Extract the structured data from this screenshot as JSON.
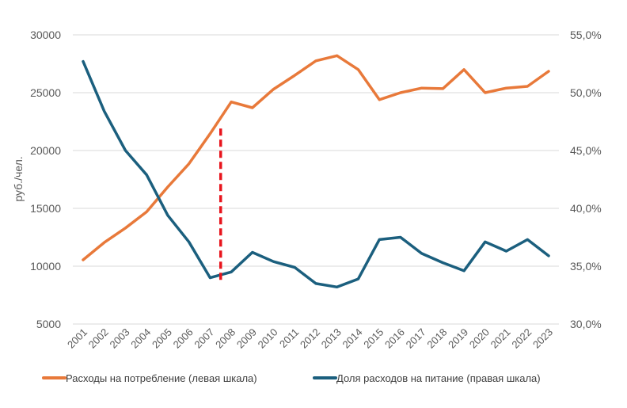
{
  "chart_data": {
    "type": "line",
    "title": "",
    "xlabel": "",
    "ylabel": "руб./чел.",
    "y2label": "",
    "categories": [
      "2001",
      "2002",
      "2003",
      "2004",
      "2005",
      "2006",
      "2007",
      "2008",
      "2009",
      "2010",
      "2011",
      "2012",
      "2013",
      "2014",
      "2015",
      "2016",
      "2017",
      "2018",
      "2019",
      "2020",
      "2021",
      "2022",
      "2023"
    ],
    "ylim": [
      5000,
      30000
    ],
    "y_ticks": [
      5000,
      10000,
      15000,
      20000,
      25000,
      30000
    ],
    "y_tick_labels": [
      "5000",
      "10000",
      "15000",
      "20000",
      "25000",
      "30000"
    ],
    "y2lim": [
      30.0,
      55.0
    ],
    "y2_ticks": [
      30,
      35,
      40,
      45,
      50,
      55
    ],
    "y2_tick_labels": [
      "30,0%",
      "35,0%",
      "40,0%",
      "45,0%",
      "50,0%",
      "55,0%"
    ],
    "grid": true,
    "legend_position": "bottom",
    "series": [
      {
        "name": "Расходы на потребление (левая шкала)",
        "axis": "left",
        "color": "#E8793A",
        "values": [
          10550,
          12050,
          13300,
          14700,
          16850,
          18850,
          21450,
          24200,
          23700,
          25300,
          26500,
          27750,
          28200,
          27000,
          24400,
          25000,
          25400,
          25350,
          27000,
          25000,
          25400,
          25550,
          26850
        ]
      },
      {
        "name": "Доля расходов на питание (правая шкала)",
        "axis": "right",
        "color": "#1B5F7E",
        "values": [
          52.7,
          48.4,
          45.0,
          42.9,
          39.4,
          37.1,
          34.0,
          34.5,
          36.2,
          35.4,
          34.9,
          33.5,
          33.2,
          33.9,
          37.3,
          37.5,
          36.1,
          35.3,
          34.6,
          37.1,
          36.3,
          37.3,
          35.9
        ]
      }
    ],
    "annotations": [
      {
        "type": "vertical-dashed-line",
        "x": 2007.5,
        "color": "#E8141C",
        "y_from": 21900,
        "y_to": 8600
      }
    ]
  }
}
